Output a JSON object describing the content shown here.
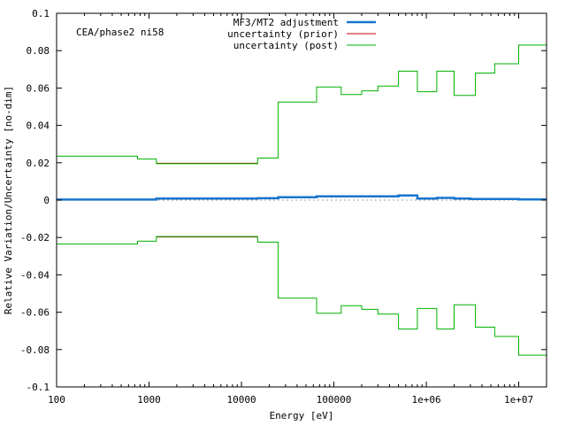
{
  "chart_data": {
    "type": "line",
    "annotation": "CEA/phase2 ni58",
    "xlabel": "Energy [eV]",
    "ylabel": "Relative Variation/Uncertainty [no-dim]",
    "x_scale": "log",
    "xlim": [
      100,
      20000000
    ],
    "ylim": [
      -0.1,
      0.1
    ],
    "x_tick_values": [
      100,
      1000,
      10000,
      100000,
      1000000,
      10000000
    ],
    "x_tick_labels": [
      "100",
      "1000",
      "10000",
      "100000",
      "1e+06",
      "1e+07"
    ],
    "y_tick_values": [
      0.1,
      0.08,
      0.06,
      0.04,
      0.02,
      0,
      -0.02,
      -0.04,
      -0.06,
      -0.08,
      -0.1
    ],
    "y_tick_labels": [
      "0.1",
      "0.08",
      "0.06",
      "0.04",
      "0.02",
      "0",
      "-0.02",
      "-0.04",
      "-0.06",
      "-0.08",
      "-0.1"
    ],
    "zero_line": "dotted",
    "grid": false,
    "legend_position": "top-center",
    "series": [
      {
        "name": "MF3/MT2 adjustment",
        "color": "#1874cd",
        "style": "thick-step",
        "x": [
          100,
          1200,
          15000,
          25000,
          65000,
          500000,
          800000,
          1300000,
          2000000,
          3000000,
          10000000,
          20000000
        ],
        "y": [
          0.0003,
          0.0008,
          0.001,
          0.0015,
          0.002,
          0.0025,
          0.0008,
          0.0012,
          0.0008,
          0.0006,
          0.0004,
          0.0004
        ]
      },
      {
        "name": "uncertainty (prior)",
        "color": "#cc0000",
        "style": "step",
        "segments": [
          {
            "x": [
              1200,
              15000
            ],
            "y": [
              0.0197,
              0.0197
            ]
          },
          {
            "x": [
              1200,
              15000
            ],
            "y": [
              -0.0197,
              -0.0197
            ]
          }
        ]
      },
      {
        "name": "uncertainty (post)",
        "color": "#00b000",
        "style": "step",
        "x": [
          100,
          750,
          1200,
          15000,
          25000,
          65000,
          120000,
          200000,
          300000,
          500000,
          800000,
          1300000,
          2000000,
          3400000,
          5500000,
          10000000,
          20000000
        ],
        "y": [
          0.0235,
          0.022,
          0.0195,
          0.0225,
          0.0525,
          0.0605,
          0.0565,
          0.0585,
          0.061,
          0.069,
          0.058,
          0.069,
          0.056,
          0.068,
          0.073,
          0.083,
          0.083
        ],
        "mirrored": true
      }
    ]
  }
}
